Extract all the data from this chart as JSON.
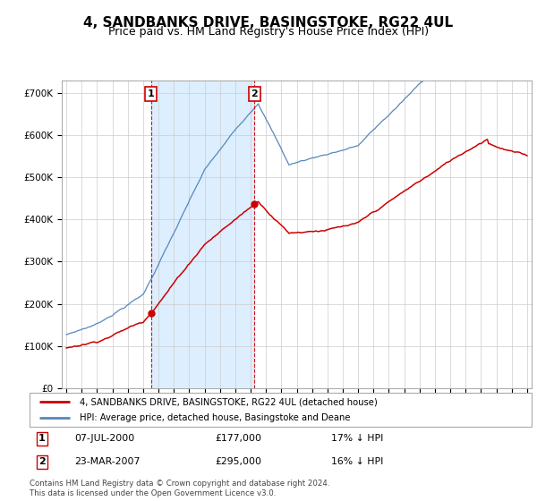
{
  "title": "4, SANDBANKS DRIVE, BASINGSTOKE, RG22 4UL",
  "subtitle": "Price paid vs. HM Land Registry's House Price Index (HPI)",
  "ylim": [
    0,
    730000
  ],
  "yticks": [
    0,
    100000,
    200000,
    300000,
    400000,
    500000,
    600000,
    700000
  ],
  "ytick_labels": [
    "£0",
    "£100K",
    "£200K",
    "£300K",
    "£400K",
    "£500K",
    "£600K",
    "£700K"
  ],
  "red_line_color": "#cc0000",
  "blue_line_color": "#5588bb",
  "shade_color": "#ddeeff",
  "legend_line1": "4, SANDBANKS DRIVE, BASINGSTOKE, RG22 4UL (detached house)",
  "legend_line2": "HPI: Average price, detached house, Basingstoke and Deane",
  "annotation1_label": "1",
  "annotation1_date": "07-JUL-2000",
  "annotation1_price": "£177,000",
  "annotation1_hpi": "17% ↓ HPI",
  "annotation2_label": "2",
  "annotation2_date": "23-MAR-2007",
  "annotation2_price": "£295,000",
  "annotation2_hpi": "16% ↓ HPI",
  "footnote": "Contains HM Land Registry data © Crown copyright and database right 2024.\nThis data is licensed under the Open Government Licence v3.0.",
  "background_color": "#ffffff",
  "grid_color": "#cccccc",
  "title_fontsize": 11,
  "subtitle_fontsize": 9
}
